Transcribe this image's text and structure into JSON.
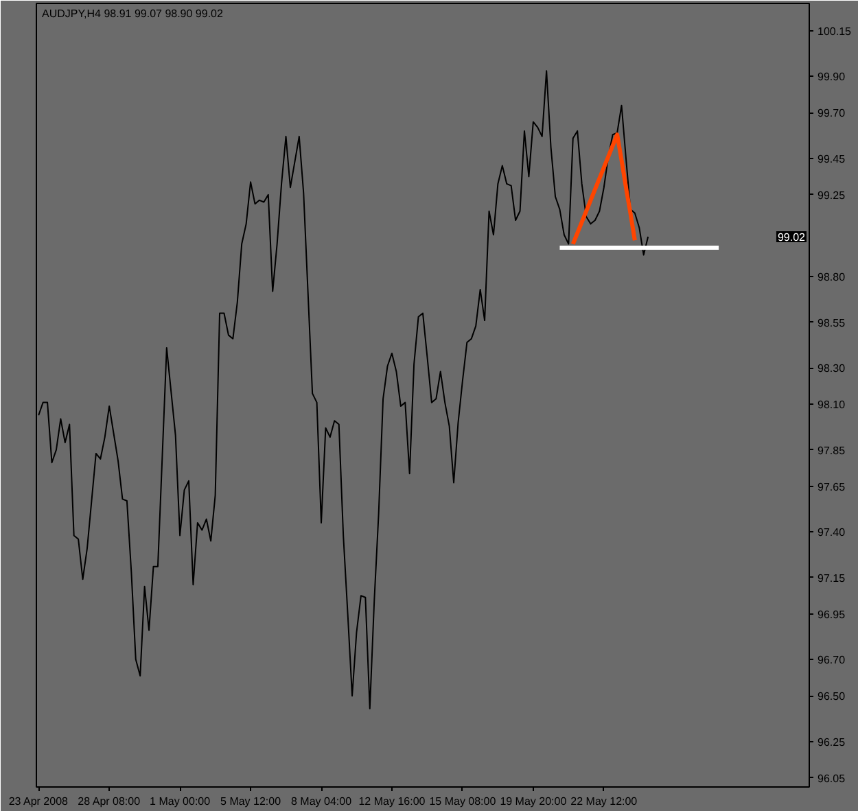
{
  "chart_data": {
    "type": "line",
    "title": "AUDJPY,H4 98.91 99.07 98.90 99.02",
    "categories": [
      "23 Apr 2008",
      null,
      null,
      null,
      null,
      null,
      null,
      null,
      null,
      null,
      null,
      null,
      null,
      null,
      null,
      null,
      "28 Apr 08:00",
      null,
      null,
      null,
      null,
      null,
      null,
      null,
      null,
      null,
      null,
      null,
      null,
      null,
      null,
      null,
      "1 May 00:00",
      null,
      null,
      null,
      null,
      null,
      null,
      null,
      null,
      null,
      null,
      null,
      null,
      null,
      null,
      null,
      "5 May 12:00",
      null,
      null,
      null,
      null,
      null,
      null,
      null,
      null,
      null,
      null,
      null,
      null,
      null,
      null,
      null,
      "8 May 04:00",
      null,
      null,
      null,
      null,
      null,
      null,
      null,
      null,
      null,
      null,
      null,
      null,
      null,
      null,
      null,
      "12 May 16:00",
      null,
      null,
      null,
      null,
      null,
      null,
      null,
      null,
      null,
      null,
      null,
      null,
      null,
      null,
      null,
      "15 May 08:00",
      null,
      null,
      null,
      null,
      null,
      null,
      null,
      null,
      null,
      null,
      null,
      null,
      null,
      null,
      null,
      "19 May 20:00",
      null,
      null,
      null,
      null,
      null,
      null,
      null,
      null,
      null,
      null,
      null,
      null,
      null,
      null,
      null,
      "22 May 12:00",
      null,
      null,
      null,
      null,
      null,
      null,
      null,
      null,
      null,
      null,
      null,
      null,
      null,
      null,
      null,
      null,
      null,
      null,
      null,
      null,
      null,
      null,
      null,
      null,
      null,
      null,
      null,
      null,
      null,
      null,
      null,
      null,
      null,
      null,
      null,
      null,
      null,
      null,
      null,
      null,
      null,
      null,
      null,
      null,
      null,
      null
    ],
    "ylim": [
      96.0,
      100.3
    ],
    "yticks": [
      100.15,
      {
        "value": 99.9,
        "label": "99.90"
      },
      {
        "value": 99.7,
        "label": "99.70"
      },
      99.45,
      99.25,
      {
        "value": 98.8,
        "label": "98.80"
      },
      98.55,
      {
        "value": 98.3,
        "label": "98.30"
      },
      {
        "value": 98.1,
        "label": "98.10"
      },
      97.85,
      97.65,
      {
        "value": 97.4,
        "label": "97.40"
      },
      97.15,
      96.95,
      {
        "value": 96.7,
        "label": "96.70"
      },
      {
        "value": 96.5,
        "label": "96.50"
      },
      96.25,
      96.05
    ],
    "grid": false,
    "annotations": [
      {
        "text": "99.02",
        "y": 99.02
      }
    ],
    "series": [
      {
        "color": "#000000",
        "values": [
          98.04,
          98.11,
          98.11,
          97.78,
          97.85,
          98.02,
          97.89,
          97.99,
          97.38,
          97.36,
          97.14,
          97.31,
          97.57,
          97.83,
          97.8,
          97.92,
          98.09,
          97.94,
          97.79,
          97.58,
          97.57,
          97.18,
          96.7,
          96.61,
          97.1,
          96.86,
          97.21,
          97.21,
          97.81,
          98.41,
          98.17,
          97.93,
          97.38,
          97.63,
          97.68,
          97.11,
          97.45,
          97.41,
          97.47,
          97.35,
          97.6,
          98.6,
          98.6,
          98.48,
          98.46,
          98.66,
          98.98,
          99.09,
          99.32,
          99.2,
          99.22,
          99.21,
          99.25,
          98.72,
          98.98,
          99.31,
          99.57,
          99.29,
          99.43,
          99.57,
          99.26,
          98.71,
          98.16,
          98.11,
          97.45,
          97.97,
          97.92,
          98.01,
          97.99,
          97.38,
          96.95,
          96.5,
          96.85,
          97.05,
          97.04,
          96.43,
          97.02,
          97.5,
          98.13,
          98.31,
          98.38,
          98.28,
          98.09,
          98.11,
          97.72,
          98.32,
          98.58,
          98.6,
          98.36,
          98.11,
          98.13,
          98.28,
          98.11,
          97.98,
          97.67,
          98.0,
          98.23,
          98.44,
          98.46,
          98.53,
          98.73,
          98.56,
          99.16,
          99.03,
          99.31,
          99.41,
          99.31,
          99.3,
          99.11,
          99.16,
          99.6,
          99.35,
          99.65,
          99.62,
          99.57,
          99.93,
          99.51,
          99.24,
          99.17,
          99.03,
          98.98,
          99.56,
          99.6,
          99.31,
          99.13,
          99.09,
          99.11,
          99.16,
          99.29,
          99.46,
          99.58,
          99.59,
          99.74,
          99.45,
          99.17,
          99.15,
          99.07,
          98.92,
          99.02,
          null,
          null,
          null,
          null,
          null,
          null,
          null,
          null,
          null,
          null,
          null,
          null,
          null,
          null,
          null,
          null,
          null,
          null,
          null,
          null,
          null,
          null,
          null,
          null,
          null,
          null,
          null,
          null,
          null,
          null,
          null,
          null,
          null,
          null,
          null,
          null
        ]
      },
      {
        "type": "line",
        "color": "#ffffff",
        "values": [
          null,
          null,
          null,
          null,
          null,
          null,
          null,
          null,
          null,
          null,
          null,
          null,
          null,
          null,
          null,
          null,
          null,
          null,
          null,
          null,
          null,
          null,
          null,
          null,
          null,
          null,
          null,
          null,
          null,
          null,
          null,
          null,
          null,
          null,
          null,
          null,
          null,
          null,
          null,
          null,
          null,
          null,
          null,
          null,
          null,
          null,
          null,
          null,
          null,
          null,
          null,
          null,
          null,
          null,
          null,
          null,
          null,
          null,
          null,
          null,
          null,
          null,
          null,
          null,
          null,
          null,
          null,
          null,
          null,
          null,
          null,
          null,
          null,
          null,
          null,
          null,
          null,
          null,
          null,
          null,
          null,
          null,
          null,
          null,
          null,
          null,
          null,
          null,
          null,
          null,
          null,
          null,
          null,
          null,
          null,
          null,
          null,
          null,
          null,
          null,
          null,
          null,
          null,
          null,
          null,
          null,
          null,
          null,
          null,
          null,
          null,
          null,
          null,
          null,
          null,
          null,
          null,
          null,
          98.96,
          98.96,
          98.96,
          98.96,
          98.96,
          98.96,
          98.96,
          98.96,
          98.96,
          98.96,
          98.96,
          98.96,
          98.96,
          98.96,
          98.96,
          98.96,
          98.96,
          98.96,
          98.96,
          98.96,
          98.96,
          98.96,
          98.96,
          98.96,
          98.96,
          98.96,
          98.96,
          98.96,
          98.96,
          98.96,
          98.96,
          98.96,
          98.96,
          98.96,
          98.96,
          98.96,
          98.96,
          null,
          null,
          null,
          null,
          null,
          null,
          null,
          null,
          null,
          null,
          null,
          null,
          null,
          null,
          null,
          null,
          null,
          null,
          null,
          null
        ]
      },
      {
        "type": "line",
        "color": "#ff4500",
        "values": [
          null,
          null,
          null,
          null,
          null,
          null,
          null,
          null,
          null,
          null,
          null,
          null,
          null,
          null,
          null,
          null,
          null,
          null,
          null,
          null,
          null,
          null,
          null,
          null,
          null,
          null,
          null,
          null,
          null,
          null,
          null,
          null,
          null,
          null,
          null,
          null,
          null,
          null,
          null,
          null,
          null,
          null,
          null,
          null,
          null,
          null,
          null,
          null,
          null,
          null,
          null,
          null,
          null,
          null,
          null,
          null,
          null,
          null,
          null,
          null,
          null,
          null,
          null,
          null,
          null,
          null,
          null,
          null,
          null,
          null,
          null,
          null,
          null,
          null,
          null,
          null,
          null,
          null,
          null,
          null,
          null,
          null,
          null,
          null,
          null,
          null,
          null,
          null,
          null,
          null,
          null,
          null,
          null,
          null,
          null,
          null,
          null,
          null,
          null,
          null,
          null,
          null,
          null,
          null,
          null,
          null,
          null,
          null,
          null,
          null,
          null,
          null,
          null,
          null,
          null,
          null,
          null,
          null,
          null,
          null,
          null,
          98.98,
          99.04,
          99.1,
          99.16,
          99.22,
          99.28,
          99.34,
          99.4,
          99.46,
          99.52,
          99.58,
          99.44,
          99.29,
          99.15,
          99.0,
          null,
          null,
          null,
          null,
          null,
          null,
          null,
          null,
          null,
          null,
          null,
          null,
          null,
          null,
          null,
          null,
          null,
          null,
          null,
          null,
          null,
          null,
          null,
          null,
          null,
          null,
          null,
          null,
          null,
          null,
          null,
          null,
          null,
          null,
          null,
          null,
          null,
          null,
          null
        ]
      }
    ]
  }
}
